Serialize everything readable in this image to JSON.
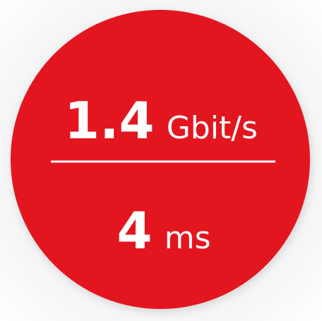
{
  "speed": {
    "value": "1.4",
    "unit": "Gbit/s"
  },
  "latency": {
    "value": "4",
    "unit": "ms"
  }
}
